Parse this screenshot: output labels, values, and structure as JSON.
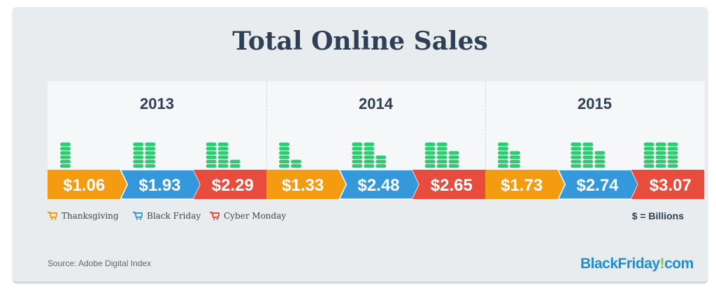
{
  "chart_data": {
    "type": "bar",
    "title": "Total Online Sales",
    "categories": [
      "2013",
      "2014",
      "2015"
    ],
    "series": [
      {
        "name": "Thanksgiving",
        "values": [
          1.06,
          1.33,
          1.73
        ],
        "color": "#f39c12"
      },
      {
        "name": "Black Friday",
        "values": [
          1.93,
          2.48,
          2.74
        ],
        "color": "#3498db"
      },
      {
        "name": "Cyber Monday",
        "values": [
          2.29,
          2.65,
          3.07
        ],
        "color": "#e74c3c"
      }
    ],
    "labels": [
      [
        "$1.06",
        "$1.93",
        "$2.29"
      ],
      [
        "$1.33",
        "$2.48",
        "$2.65"
      ],
      [
        "$1.73",
        "$2.74",
        "$3.07"
      ]
    ],
    "unit_note": "$ = Billions",
    "coin_color": "#2ecc71"
  },
  "source": "Source: Adobe Digital Index",
  "logo": {
    "part1": "BlackFriday",
    "part2": "!",
    "part3": "com"
  }
}
